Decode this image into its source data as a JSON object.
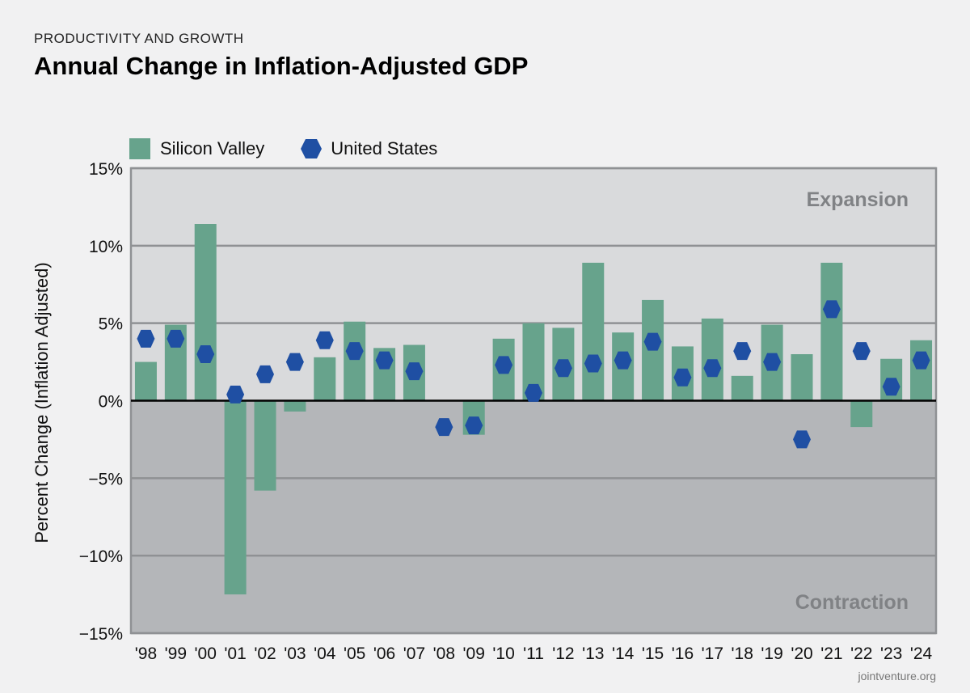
{
  "kicker": "PRODUCTIVITY AND GROWTH",
  "title": "Annual Change in Inflation-Adjusted GDP",
  "source": "jointventure.org",
  "colors": {
    "silicon_valley": "#67a38c",
    "united_states": "#1f4fa3",
    "expansion_bg": "#d9dadc",
    "contraction_bg": "#b4b6b9"
  },
  "chart_data": {
    "type": "bar",
    "title": "Annual Change in Inflation-Adjusted GDP",
    "xlabel": "",
    "ylabel": "Percent Change (Inflation Adjusted)",
    "ylim": [
      -15,
      15
    ],
    "yticks": [
      15,
      10,
      5,
      0,
      -5,
      -10,
      -15
    ],
    "ytick_labels": [
      "15%",
      "10%",
      "5%",
      "0%",
      "−5%",
      "−10%",
      "−15%"
    ],
    "grid": true,
    "legend_position": "top-left",
    "region_labels": {
      "top": "Expansion",
      "bottom": "Contraction"
    },
    "categories": [
      "'98",
      "'99",
      "'00",
      "'01",
      "'02",
      "'03",
      "'04",
      "'05",
      "'06",
      "'07",
      "'08",
      "'09",
      "'10",
      "'11",
      "'12",
      "'13",
      "'14",
      "'15",
      "'16",
      "'17",
      "'18",
      "'19",
      "'20",
      "'21",
      "'22",
      "'23",
      "'24"
    ],
    "series": [
      {
        "name": "Silicon Valley",
        "type": "bar",
        "values": [
          2.5,
          4.9,
          11.4,
          -12.5,
          -5.8,
          -0.7,
          2.8,
          5.1,
          3.4,
          3.6,
          null,
          -2.2,
          4.0,
          5.0,
          4.7,
          8.9,
          4.4,
          6.5,
          3.5,
          5.3,
          1.6,
          4.9,
          3.0,
          8.9,
          -1.7,
          2.7,
          3.9
        ]
      },
      {
        "name": "United States",
        "type": "scatter",
        "values": [
          4.0,
          4.0,
          3.0,
          0.4,
          1.7,
          2.5,
          3.9,
          3.2,
          2.6,
          1.9,
          -1.7,
          -1.6,
          2.3,
          0.5,
          2.1,
          2.4,
          2.6,
          3.8,
          1.5,
          2.1,
          3.2,
          2.5,
          -2.5,
          5.9,
          3.2,
          0.9,
          2.6
        ]
      }
    ]
  }
}
